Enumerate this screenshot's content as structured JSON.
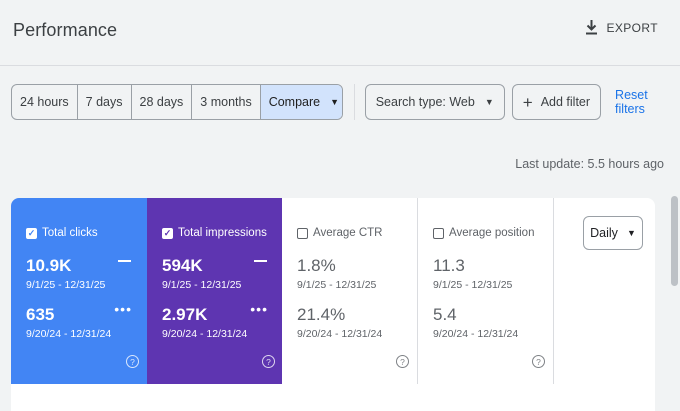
{
  "header": {
    "title": "Performance",
    "export_label": "EXPORT"
  },
  "filters": {
    "date_ranges": [
      "24 hours",
      "7 days",
      "28 days",
      "3 months",
      "Compare"
    ],
    "active_range": "Compare",
    "search_type": "Search type: Web",
    "add_filter": "Add filter",
    "reset": "Reset filters"
  },
  "last_update": "Last update: 5.5 hours ago",
  "metrics": [
    {
      "label": "Total clicks",
      "checked": true,
      "value_current": "10.9K",
      "range_current": "9/1/25 - 12/31/25",
      "value_previous": "635",
      "range_previous": "9/20/24 - 12/31/24",
      "help": "?"
    },
    {
      "label": "Total impressions",
      "checked": true,
      "value_current": "594K",
      "range_current": "9/1/25 - 12/31/25",
      "value_previous": "2.97K",
      "range_previous": "9/20/24 - 12/31/24",
      "help": "?"
    },
    {
      "label": "Average CTR",
      "checked": false,
      "value_current": "1.8%",
      "range_current": "9/1/25 - 12/31/25",
      "value_previous": "21.4%",
      "range_previous": "9/20/24 - 12/31/24",
      "help": "?"
    },
    {
      "label": "Average position",
      "checked": false,
      "value_current": "11.3",
      "range_current": "9/1/25 - 12/31/25",
      "value_previous": "5.4",
      "range_previous": "9/20/24 - 12/31/24",
      "help": "?"
    }
  ],
  "granularity": "Daily",
  "colors": {
    "clicks": "#4285f4",
    "impressions": "#5e35b1",
    "link": "#1a73e8",
    "active_segment": "#d2e3fc"
  },
  "icons": {
    "export": "download-icon",
    "dropdown": "caret-down-icon",
    "add": "plus-icon",
    "help": "help-circle-icon"
  }
}
